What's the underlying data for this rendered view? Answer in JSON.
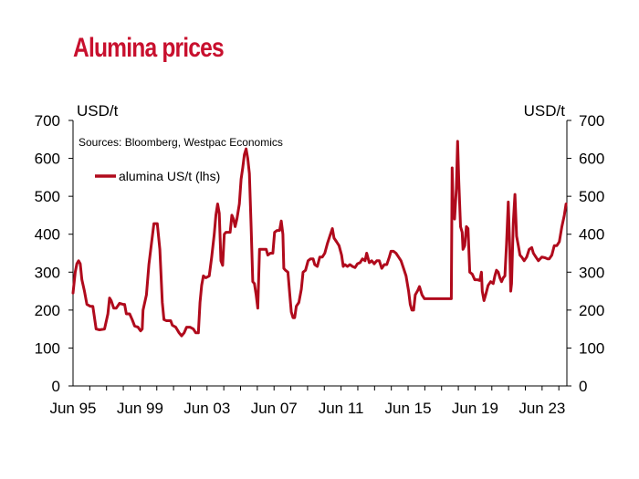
{
  "page": {
    "title": "Alumina prices"
  },
  "chart_data": {
    "type": "line",
    "title": "Alumina prices",
    "source_note": "Sources: Bloomberg, Westpac Economics",
    "ylabel_left": "USD/t",
    "ylabel_right": "USD/t",
    "ylim": [
      0,
      700
    ],
    "y_ticks": [
      "0",
      "100",
      "200",
      "300",
      "400",
      "500",
      "600",
      "700"
    ],
    "x_ticks": [
      "Jun 95",
      "Jun 99",
      "Jun 03",
      "Jun 07",
      "Jun 11",
      "Jun 15",
      "Jun 19",
      "Jun 23"
    ],
    "x_tick_years": [
      1995.42,
      1999.42,
      2003.42,
      2007.42,
      2011.42,
      2015.42,
      2019.42,
      2023.42
    ],
    "xlim": [
      1995.42,
      2024.9
    ],
    "legend_position": "top-left",
    "line_color": "#b00a1c",
    "series": [
      {
        "name": "alumina US/t (lhs)",
        "points": [
          [
            1995.42,
            245
          ],
          [
            1995.55,
            300
          ],
          [
            1995.65,
            322
          ],
          [
            1995.75,
            330
          ],
          [
            1995.85,
            322
          ],
          [
            1995.95,
            280
          ],
          [
            1996.1,
            250
          ],
          [
            1996.25,
            215
          ],
          [
            1996.45,
            210
          ],
          [
            1996.6,
            210
          ],
          [
            1996.8,
            150
          ],
          [
            1997.0,
            148
          ],
          [
            1997.3,
            150
          ],
          [
            1997.5,
            190
          ],
          [
            1997.6,
            232
          ],
          [
            1997.7,
            225
          ],
          [
            1997.85,
            205
          ],
          [
            1998.0,
            205
          ],
          [
            1998.2,
            218
          ],
          [
            1998.4,
            215
          ],
          [
            1998.5,
            215
          ],
          [
            1998.6,
            190
          ],
          [
            1998.8,
            190
          ],
          [
            1998.95,
            175
          ],
          [
            1999.1,
            158
          ],
          [
            1999.3,
            155
          ],
          [
            1999.45,
            145
          ],
          [
            1999.55,
            150
          ],
          [
            1999.6,
            200
          ],
          [
            1999.8,
            240
          ],
          [
            1999.95,
            320
          ],
          [
            2000.1,
            375
          ],
          [
            2000.25,
            428
          ],
          [
            2000.45,
            428
          ],
          [
            2000.6,
            360
          ],
          [
            2000.75,
            220
          ],
          [
            2000.85,
            175
          ],
          [
            2001.0,
            172
          ],
          [
            2001.25,
            172
          ],
          [
            2001.35,
            160
          ],
          [
            2001.55,
            155
          ],
          [
            2001.75,
            140
          ],
          [
            2001.9,
            132
          ],
          [
            2002.05,
            140
          ],
          [
            2002.2,
            155
          ],
          [
            2002.4,
            155
          ],
          [
            2002.6,
            150
          ],
          [
            2002.75,
            140
          ],
          [
            2002.9,
            140
          ],
          [
            2003.0,
            220
          ],
          [
            2003.1,
            265
          ],
          [
            2003.2,
            290
          ],
          [
            2003.35,
            285
          ],
          [
            2003.55,
            290
          ],
          [
            2003.7,
            340
          ],
          [
            2003.85,
            400
          ],
          [
            2003.95,
            450
          ],
          [
            2004.05,
            480
          ],
          [
            2004.15,
            455
          ],
          [
            2004.25,
            330
          ],
          [
            2004.35,
            318
          ],
          [
            2004.45,
            400
          ],
          [
            2004.55,
            405
          ],
          [
            2004.8,
            405
          ],
          [
            2004.9,
            450
          ],
          [
            2005.0,
            440
          ],
          [
            2005.1,
            420
          ],
          [
            2005.2,
            440
          ],
          [
            2005.35,
            480
          ],
          [
            2005.45,
            545
          ],
          [
            2005.55,
            575
          ],
          [
            2005.65,
            610
          ],
          [
            2005.75,
            625
          ],
          [
            2005.85,
            600
          ],
          [
            2005.95,
            560
          ],
          [
            2006.05,
            420
          ],
          [
            2006.15,
            275
          ],
          [
            2006.25,
            270
          ],
          [
            2006.35,
            240
          ],
          [
            2006.45,
            205
          ],
          [
            2006.55,
            360
          ],
          [
            2006.75,
            360
          ],
          [
            2006.95,
            360
          ],
          [
            2007.05,
            345
          ],
          [
            2007.2,
            350
          ],
          [
            2007.35,
            350
          ],
          [
            2007.45,
            405
          ],
          [
            2007.6,
            410
          ],
          [
            2007.75,
            410
          ],
          [
            2007.85,
            435
          ],
          [
            2007.95,
            400
          ],
          [
            2008.0,
            310
          ],
          [
            2008.1,
            305
          ],
          [
            2008.25,
            300
          ],
          [
            2008.35,
            245
          ],
          [
            2008.45,
            195
          ],
          [
            2008.55,
            180
          ],
          [
            2008.65,
            180
          ],
          [
            2008.75,
            210
          ],
          [
            2008.9,
            220
          ],
          [
            2009.05,
            255
          ],
          [
            2009.15,
            300
          ],
          [
            2009.3,
            305
          ],
          [
            2009.45,
            330
          ],
          [
            2009.6,
            335
          ],
          [
            2009.75,
            335
          ],
          [
            2009.85,
            320
          ],
          [
            2010.0,
            315
          ],
          [
            2010.15,
            340
          ],
          [
            2010.3,
            340
          ],
          [
            2010.45,
            350
          ],
          [
            2010.6,
            375
          ],
          [
            2010.75,
            395
          ],
          [
            2010.9,
            415
          ],
          [
            2011.0,
            390
          ],
          [
            2011.15,
            380
          ],
          [
            2011.3,
            370
          ],
          [
            2011.45,
            345
          ],
          [
            2011.55,
            315
          ],
          [
            2011.65,
            320
          ],
          [
            2011.8,
            315
          ],
          [
            2011.95,
            320
          ],
          [
            2012.1,
            315
          ],
          [
            2012.25,
            312
          ],
          [
            2012.4,
            322
          ],
          [
            2012.55,
            325
          ],
          [
            2012.7,
            335
          ],
          [
            2012.85,
            330
          ],
          [
            2012.95,
            350
          ],
          [
            2013.1,
            325
          ],
          [
            2013.25,
            330
          ],
          [
            2013.4,
            322
          ],
          [
            2013.55,
            330
          ],
          [
            2013.7,
            330
          ],
          [
            2013.85,
            310
          ],
          [
            2014.0,
            320
          ],
          [
            2014.15,
            320
          ],
          [
            2014.3,
            340
          ],
          [
            2014.4,
            355
          ],
          [
            2014.55,
            355
          ],
          [
            2014.7,
            350
          ],
          [
            2014.85,
            340
          ],
          [
            2015.0,
            330
          ],
          [
            2015.15,
            310
          ],
          [
            2015.3,
            290
          ],
          [
            2015.45,
            250
          ],
          [
            2015.55,
            215
          ],
          [
            2015.65,
            200
          ],
          [
            2015.75,
            200
          ],
          [
            2015.85,
            240
          ],
          [
            2016.0,
            252
          ],
          [
            2016.1,
            262
          ],
          [
            2016.25,
            240
          ],
          [
            2016.4,
            230
          ],
          [
            2016.6,
            230
          ],
          [
            2016.8,
            230
          ],
          [
            2017.0,
            230
          ],
          [
            2017.2,
            230
          ],
          [
            2017.4,
            230
          ],
          [
            2017.6,
            230
          ],
          [
            2017.8,
            230
          ],
          [
            2018.0,
            230
          ],
          [
            2018.05,
            575
          ],
          [
            2018.12,
            450
          ],
          [
            2018.2,
            440
          ],
          [
            2018.3,
            520
          ],
          [
            2018.38,
            645
          ],
          [
            2018.45,
            540
          ],
          [
            2018.55,
            420
          ],
          [
            2018.65,
            405
          ],
          [
            2018.7,
            360
          ],
          [
            2018.8,
            370
          ],
          [
            2018.9,
            420
          ],
          [
            2019.0,
            415
          ],
          [
            2019.1,
            300
          ],
          [
            2019.25,
            295
          ],
          [
            2019.4,
            280
          ],
          [
            2019.55,
            280
          ],
          [
            2019.7,
            278
          ],
          [
            2019.8,
            300
          ],
          [
            2019.85,
            250
          ],
          [
            2019.95,
            225
          ],
          [
            2020.05,
            240
          ],
          [
            2020.2,
            265
          ],
          [
            2020.35,
            275
          ],
          [
            2020.5,
            270
          ],
          [
            2020.6,
            290
          ],
          [
            2020.7,
            305
          ],
          [
            2020.8,
            300
          ],
          [
            2020.9,
            285
          ],
          [
            2021.0,
            275
          ],
          [
            2021.1,
            285
          ],
          [
            2021.2,
            290
          ],
          [
            2021.3,
            375
          ],
          [
            2021.4,
            485
          ],
          [
            2021.48,
            380
          ],
          [
            2021.55,
            250
          ],
          [
            2021.6,
            270
          ],
          [
            2021.7,
            430
          ],
          [
            2021.8,
            505
          ],
          [
            2021.9,
            395
          ],
          [
            2022.0,
            370
          ],
          [
            2022.1,
            345
          ],
          [
            2022.2,
            340
          ],
          [
            2022.35,
            330
          ],
          [
            2022.5,
            340
          ],
          [
            2022.65,
            360
          ],
          [
            2022.8,
            365
          ],
          [
            2022.9,
            350
          ],
          [
            2023.05,
            340
          ],
          [
            2023.2,
            330
          ],
          [
            2023.4,
            340
          ],
          [
            2023.6,
            338
          ],
          [
            2023.75,
            335
          ],
          [
            2023.85,
            335
          ],
          [
            2024.0,
            345
          ],
          [
            2024.15,
            370
          ],
          [
            2024.3,
            370
          ],
          [
            2024.45,
            380
          ],
          [
            2024.6,
            420
          ],
          [
            2024.75,
            450
          ],
          [
            2024.85,
            480
          ]
        ]
      }
    ]
  }
}
